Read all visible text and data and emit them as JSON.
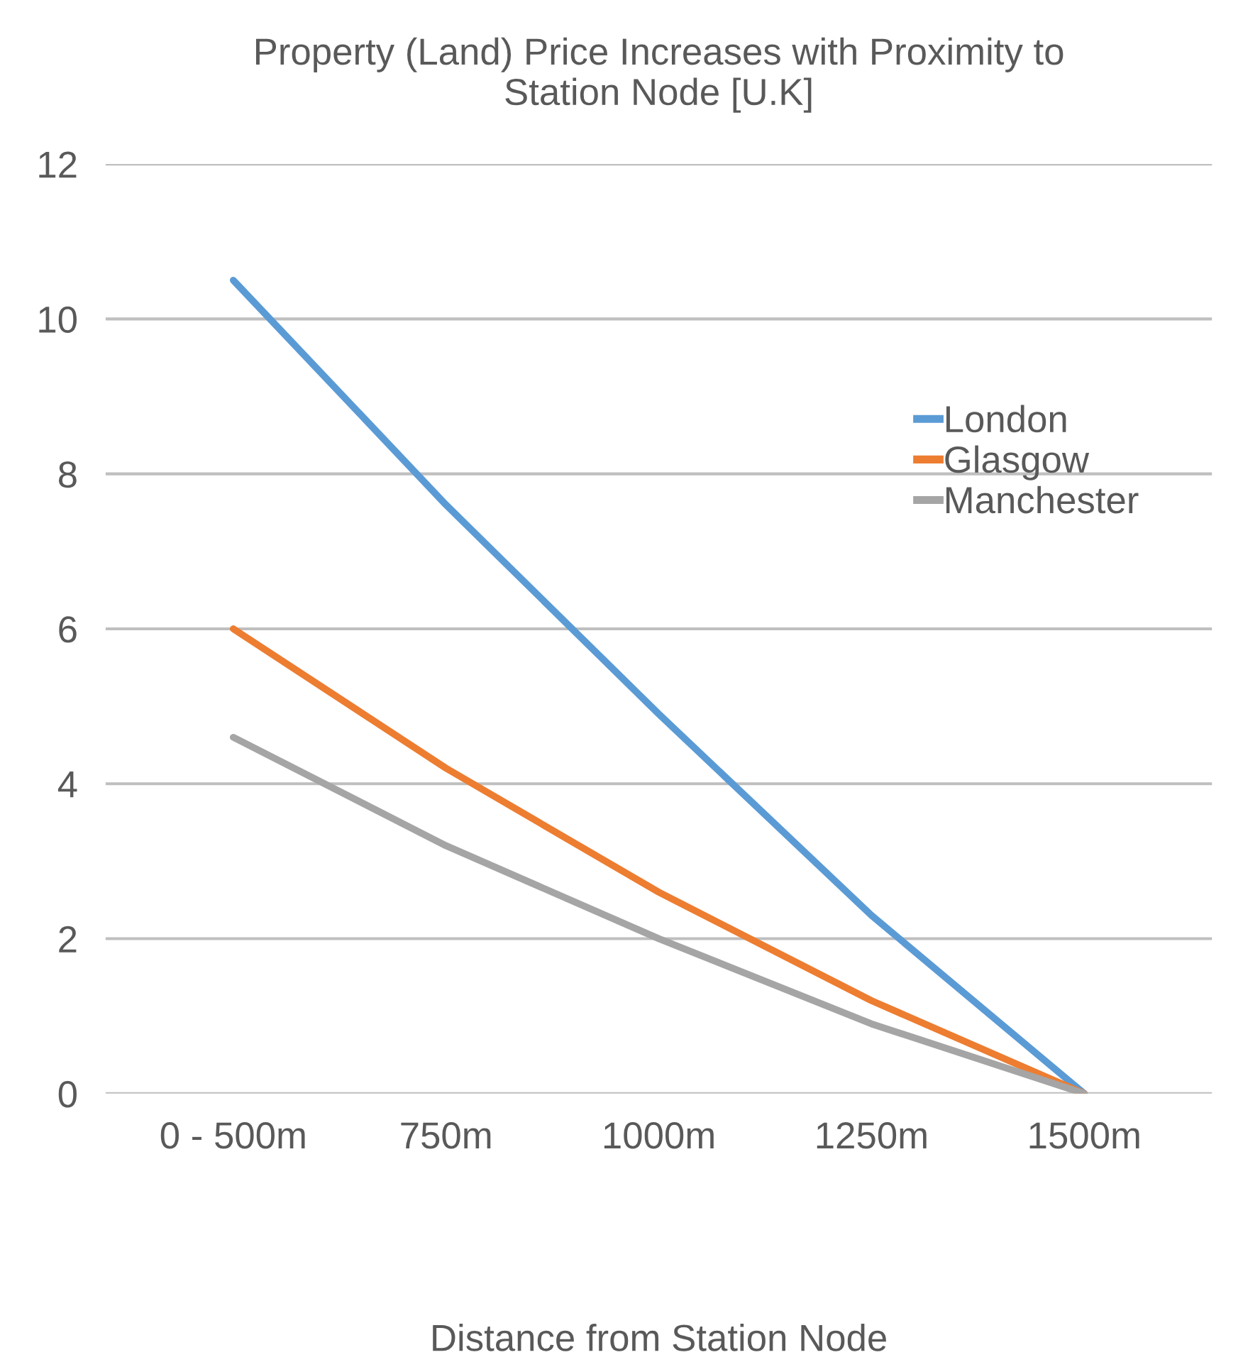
{
  "chart_data": {
    "type": "line",
    "title": "Property (Land) Price Increases with Proximity to\nStation Node [U.K]",
    "xlabel": "Distance from Station Node",
    "categories": [
      "0 - 500m",
      "750m",
      "1000m",
      "1250m",
      "1500m"
    ],
    "series": [
      {
        "name": "London",
        "color": "#5b9bd5",
        "values": [
          10.5,
          7.6,
          4.9,
          2.3,
          0
        ]
      },
      {
        "name": "Glasgow",
        "color": "#ed7d31",
        "values": [
          6.0,
          4.2,
          2.6,
          1.2,
          0
        ]
      },
      {
        "name": "Manchester",
        "color": "#a5a5a5",
        "values": [
          4.6,
          3.2,
          2.0,
          0.9,
          0
        ]
      }
    ],
    "ylim": [
      0,
      12
    ],
    "yticks": [
      0,
      2,
      4,
      6,
      8,
      10,
      12
    ],
    "grid": "y",
    "legend": "top right",
    "marker": "none",
    "line_style": "solid"
  }
}
